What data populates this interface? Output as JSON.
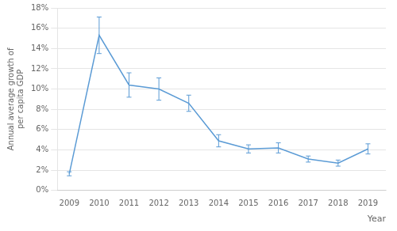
{
  "chart_data": {
    "type": "line",
    "ylabel": "Annual average growth of\nper capita GDP",
    "xlabel": "Year",
    "x": [
      2009,
      2010,
      2011,
      2012,
      2013,
      2014,
      2015,
      2016,
      2017,
      2018,
      2019
    ],
    "values": [
      0.0165,
      0.153,
      0.104,
      0.1,
      0.086,
      0.049,
      0.041,
      0.042,
      0.031,
      0.027,
      0.041
    ],
    "errors": [
      0.002,
      0.018,
      0.012,
      0.011,
      0.008,
      0.006,
      0.004,
      0.005,
      0.003,
      0.003,
      0.005
    ],
    "color": "#5B9BD5",
    "marker": "none",
    "xlim": [
      2008.6,
      2019.6
    ],
    "xticks": [
      2009,
      2010,
      2011,
      2012,
      2013,
      2014,
      2015,
      2016,
      2017,
      2018,
      2019
    ],
    "ylim": [
      0.0,
      0.18
    ],
    "yticks": [
      {
        "value": 0.0,
        "label": "0%"
      },
      {
        "value": 0.02,
        "label": "2%"
      },
      {
        "value": 0.04,
        "label": "4%"
      },
      {
        "value": 0.06,
        "label": "6%"
      },
      {
        "value": 0.08,
        "label": "8%"
      },
      {
        "value": 0.1,
        "label": "10%"
      },
      {
        "value": 0.12,
        "label": "12%"
      },
      {
        "value": 0.14,
        "label": "14%"
      },
      {
        "value": 0.16,
        "label": "16%"
      },
      {
        "value": 0.18,
        "label": "18%"
      }
    ],
    "grid": true
  }
}
